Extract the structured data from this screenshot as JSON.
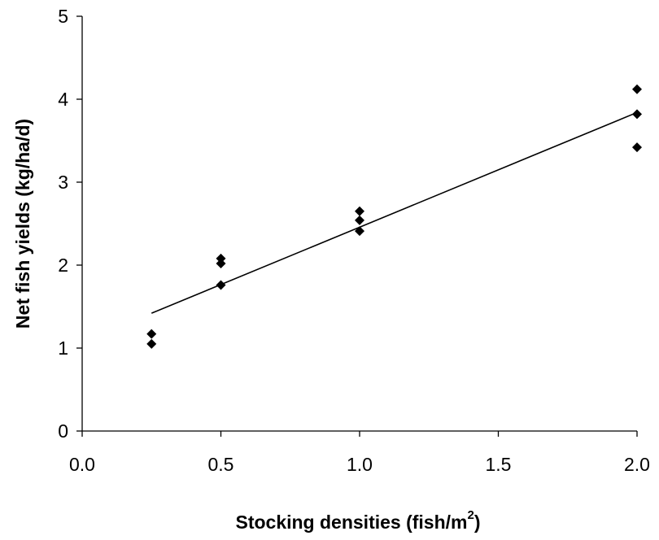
{
  "chart_data": {
    "type": "scatter",
    "title": "",
    "xlabel": "Stocking densities (fish/m",
    "xlabel_sup": "2",
    "xlabel_close": ")",
    "ylabel": "Net fish yields (kg/ha/d)",
    "x_ticks": [
      {
        "value": 0.0,
        "label": "0.0"
      },
      {
        "value": 0.5,
        "label": "0.5"
      },
      {
        "value": 1.0,
        "label": "1.0"
      },
      {
        "value": 1.5,
        "label": "1.5"
      },
      {
        "value": 2.0,
        "label": "2.0"
      }
    ],
    "y_ticks": [
      {
        "value": 0,
        "label": "0"
      },
      {
        "value": 1,
        "label": "1"
      },
      {
        "value": 2,
        "label": "2"
      },
      {
        "value": 3,
        "label": "3"
      },
      {
        "value": 4,
        "label": "4"
      },
      {
        "value": 5,
        "label": "5"
      }
    ],
    "xlim": [
      0,
      2
    ],
    "ylim": [
      0,
      5
    ],
    "grid": false,
    "marker": "diamond",
    "marker_color": "#000000",
    "series": [
      {
        "points": [
          {
            "x": 0.25,
            "y": 1.17
          },
          {
            "x": 0.25,
            "y": 1.05
          },
          {
            "x": 0.5,
            "y": 2.08
          },
          {
            "x": 0.5,
            "y": 2.02
          },
          {
            "x": 0.5,
            "y": 1.76
          },
          {
            "x": 1.0,
            "y": 2.65
          },
          {
            "x": 1.0,
            "y": 2.54
          },
          {
            "x": 1.0,
            "y": 2.41
          },
          {
            "x": 2.0,
            "y": 4.12
          },
          {
            "x": 2.0,
            "y": 3.82
          },
          {
            "x": 2.0,
            "y": 3.42
          }
        ]
      }
    ],
    "trendline": {
      "type": "linear",
      "from": {
        "x": 0.25,
        "y": 1.42
      },
      "to": {
        "x": 2.0,
        "y": 3.84
      }
    }
  }
}
